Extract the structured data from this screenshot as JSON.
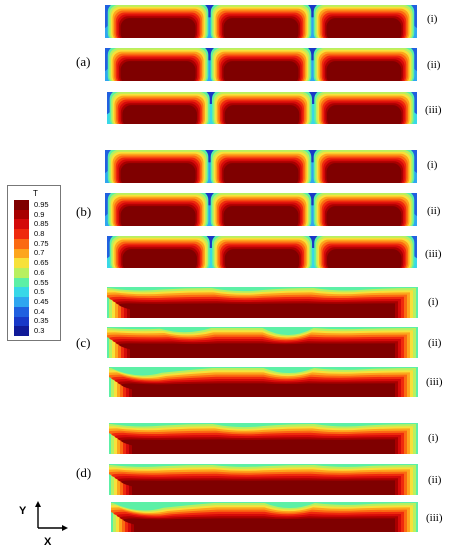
{
  "legend": {
    "title": "T",
    "ticks": [
      "0.95",
      "0.9",
      "0.85",
      "0.8",
      "0.75",
      "0.7",
      "0.65",
      "0.6",
      "0.55",
      "0.5",
      "0.45",
      "0.4",
      "0.35",
      "0.3"
    ],
    "colors": [
      "#7f0000",
      "#a80000",
      "#d40a0a",
      "#ef2a0d",
      "#fb6a12",
      "#fda51c",
      "#f7e13a",
      "#b8f060",
      "#5cf0a6",
      "#38d8e8",
      "#2fa6f0",
      "#2060e0",
      "#1838c8",
      "#101a98"
    ]
  },
  "axes": {
    "x": "X",
    "y": "Y"
  },
  "groups": [
    {
      "label": "(a)",
      "rows": [
        "(i)",
        "(ii)",
        "(iii)"
      ]
    },
    {
      "label": "(b)",
      "rows": [
        "(i)",
        "(ii)",
        "(iii)"
      ]
    },
    {
      "label": "(c)",
      "rows": [
        "(i)",
        "(ii)",
        "(iii)"
      ]
    },
    {
      "label": "(d)",
      "rows": [
        "(i)",
        "(ii)",
        "(iii)"
      ]
    }
  ]
}
